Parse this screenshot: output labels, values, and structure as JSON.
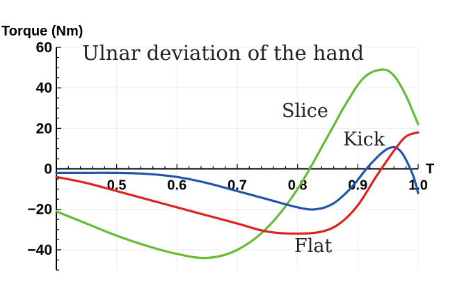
{
  "chart_data": {
    "type": "line",
    "title": "Ulnar deviation  of the hand",
    "xlabel": "T",
    "ylabel": "Torque (Nm)",
    "xlim": [
      0.4,
      1.0
    ],
    "ylim": [
      -50,
      60
    ],
    "x_ticks": [
      "0.5",
      "0.6",
      "0.7",
      "0.8",
      "0.9",
      "1.0"
    ],
    "y_ticks": [
      "60",
      "40",
      "20",
      "0",
      "−20",
      "−40"
    ],
    "grid": true,
    "series": [
      {
        "name": "Slice",
        "color": "#66bb33",
        "x": [
          0.4,
          0.45,
          0.5,
          0.55,
          0.6,
          0.65,
          0.7,
          0.75,
          0.8,
          0.85,
          0.88,
          0.91,
          0.94,
          0.96,
          0.98,
          1.0
        ],
        "y": [
          -21,
          -27,
          -33,
          -38,
          -42,
          -44,
          -40,
          -29,
          -10,
          16,
          32,
          45,
          49,
          46,
          36,
          22
        ]
      },
      {
        "name": "Kick",
        "color": "#2255aa",
        "x": [
          0.4,
          0.45,
          0.5,
          0.55,
          0.6,
          0.65,
          0.7,
          0.75,
          0.8,
          0.83,
          0.86,
          0.89,
          0.92,
          0.95,
          0.97,
          0.99,
          1.0
        ],
        "y": [
          -2,
          -2,
          -2,
          -2.5,
          -4,
          -7,
          -11,
          -15,
          -19,
          -20,
          -17,
          -9,
          2,
          10,
          9,
          -2,
          -12
        ]
      },
      {
        "name": "Flat",
        "color": "#dd2222",
        "x": [
          0.4,
          0.45,
          0.5,
          0.55,
          0.6,
          0.65,
          0.7,
          0.75,
          0.8,
          0.84,
          0.87,
          0.9,
          0.93,
          0.96,
          0.98,
          1.0
        ],
        "y": [
          -4,
          -7,
          -11,
          -15,
          -19,
          -23,
          -27,
          -31,
          -32,
          -31,
          -27,
          -18,
          -4,
          9,
          16,
          18
        ]
      }
    ]
  }
}
